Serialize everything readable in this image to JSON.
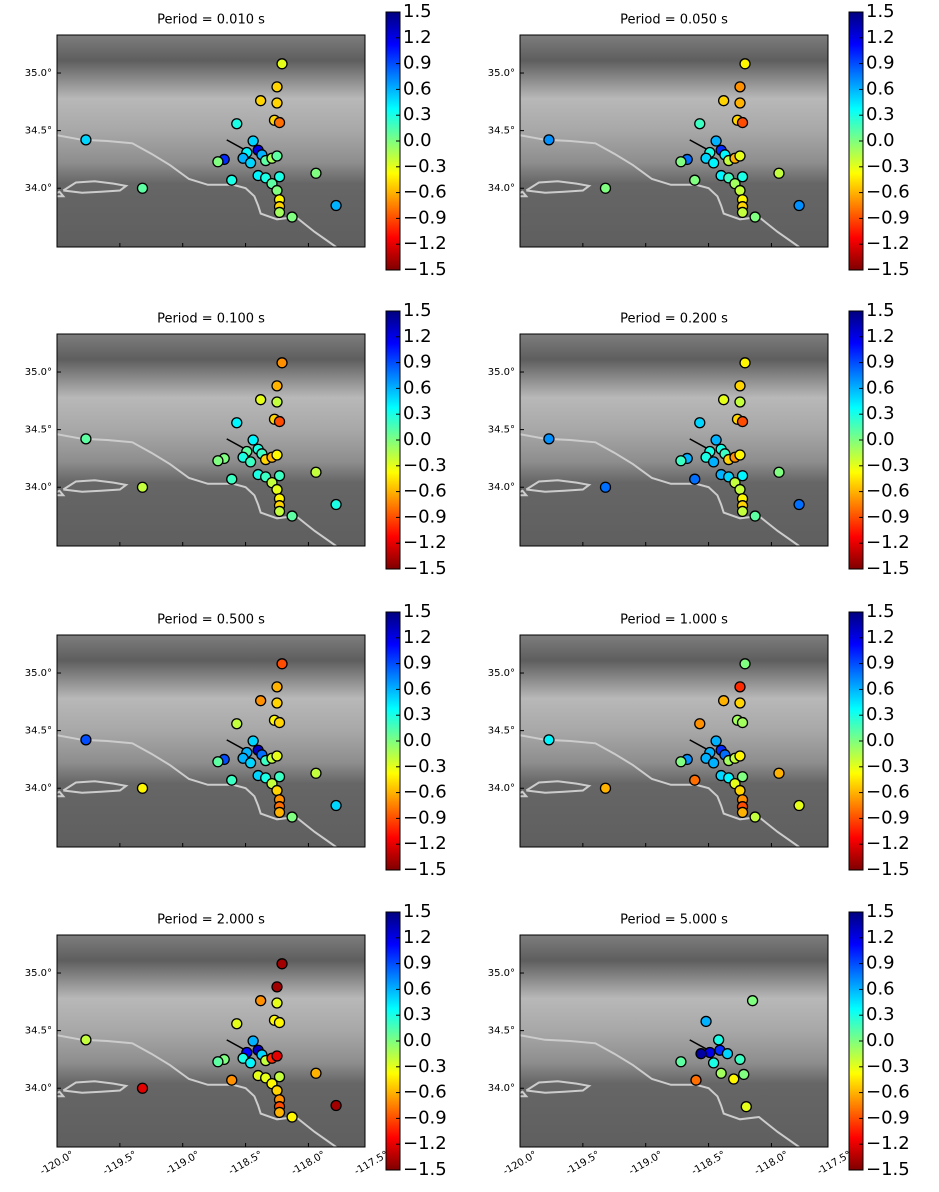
{
  "map": {
    "xlim": [
      -120.0,
      -117.55
    ],
    "ylim": [
      33.49,
      35.33
    ],
    "xticks": [
      {
        "value": -120.0,
        "label": "-120.0°"
      },
      {
        "value": -119.5,
        "label": "-119.5°"
      },
      {
        "value": -119.0,
        "label": "-119.0°"
      },
      {
        "value": -118.5,
        "label": "-118.5°"
      },
      {
        "value": -118.0,
        "label": "-118.0°"
      },
      {
        "value": -117.5,
        "label": "-117.5°"
      }
    ],
    "yticks": [
      {
        "value": 34.0,
        "label": "34.0°"
      },
      {
        "value": 34.5,
        "label": "34.5°"
      },
      {
        "value": 35.0,
        "label": "35.0°"
      }
    ],
    "colorbar": {
      "clim": [
        -1.5,
        1.5
      ],
      "colormap": "jet_r",
      "ticks": [
        1.5,
        1.2,
        0.9,
        0.6,
        0.3,
        {
          "value": 0,
          "label": "0.0"
        },
        {
          "value": -0.3,
          "label": "−0.3"
        },
        {
          "value": -0.6,
          "label": "−0.6"
        },
        {
          "value": -0.9,
          "label": "−0.9"
        },
        {
          "value": -1.2,
          "label": "−1.2"
        },
        {
          "value": -1.5,
          "label": "−1.5"
        }
      ]
    }
  },
  "chart_data": [
    {
      "type": "scatter",
      "title": "Period = 0.010 s",
      "x": [
        -119.77,
        -119.32,
        -118.21,
        -118.25,
        -118.38,
        -118.25,
        -118.27,
        -118.23,
        -118.57,
        -118.44,
        -118.67,
        -118.72,
        -118.61,
        -118.49,
        -118.4,
        -118.37,
        -118.52,
        -118.46,
        -118.34,
        -118.29,
        -118.25,
        -118.4,
        -118.34,
        -118.29,
        -118.23,
        -118.25,
        -118.23,
        -118.23,
        -118.23,
        -118.13,
        -117.94,
        -117.78
      ],
      "y": [
        34.42,
        34.0,
        35.08,
        34.88,
        34.76,
        34.74,
        34.59,
        34.57,
        34.56,
        34.41,
        34.25,
        34.23,
        34.07,
        34.31,
        34.33,
        34.29,
        34.26,
        34.22,
        34.24,
        34.26,
        34.28,
        34.11,
        34.09,
        34.04,
        34.1,
        33.98,
        33.9,
        33.84,
        33.79,
        33.75,
        34.13,
        33.85
      ],
      "values": [
        0.5,
        0.1,
        -0.3,
        -0.5,
        -0.5,
        -0.5,
        -0.5,
        -0.8,
        0.3,
        0.5,
        1.0,
        0.0,
        0.3,
        0.4,
        1.2,
        0.6,
        0.6,
        0.5,
        0.1,
        -0.1,
        0.1,
        0.4,
        0.3,
        0.1,
        0.3,
        0.0,
        -0.4,
        -0.5,
        -0.1,
        0.0,
        0.0,
        0.6
      ]
    },
    {
      "type": "scatter",
      "title": "Period = 0.050 s",
      "x": [
        -119.77,
        -119.32,
        -118.21,
        -118.25,
        -118.38,
        -118.25,
        -118.27,
        -118.23,
        -118.57,
        -118.44,
        -118.67,
        -118.72,
        -118.61,
        -118.49,
        -118.4,
        -118.37,
        -118.52,
        -118.46,
        -118.34,
        -118.29,
        -118.25,
        -118.4,
        -118.34,
        -118.29,
        -118.23,
        -118.25,
        -118.23,
        -118.23,
        -118.23,
        -118.13,
        -117.94,
        -117.78
      ],
      "y": [
        34.42,
        34.0,
        35.08,
        34.88,
        34.76,
        34.74,
        34.59,
        34.57,
        34.56,
        34.41,
        34.25,
        34.23,
        34.07,
        34.31,
        34.33,
        34.29,
        34.26,
        34.22,
        34.24,
        34.26,
        34.28,
        34.11,
        34.09,
        34.04,
        34.1,
        33.98,
        33.9,
        33.84,
        33.79,
        33.75,
        34.13,
        33.85
      ],
      "values": [
        0.7,
        0.0,
        -0.4,
        -0.7,
        -0.5,
        -0.6,
        -0.5,
        -0.9,
        0.2,
        0.6,
        0.8,
        0.0,
        0.0,
        0.3,
        1.0,
        0.4,
        0.5,
        0.4,
        -0.2,
        -0.6,
        -0.3,
        0.4,
        0.2,
        -0.1,
        0.3,
        -0.2,
        -0.4,
        -0.5,
        -0.2,
        0.0,
        -0.2,
        0.7
      ]
    },
    {
      "type": "scatter",
      "title": "Period = 0.100 s",
      "x": [
        -119.77,
        -119.32,
        -118.21,
        -118.25,
        -118.38,
        -118.25,
        -118.27,
        -118.23,
        -118.57,
        -118.44,
        -118.67,
        -118.72,
        -118.61,
        -118.49,
        -118.4,
        -118.37,
        -118.52,
        -118.46,
        -118.34,
        -118.29,
        -118.25,
        -118.4,
        -118.34,
        -118.29,
        -118.23,
        -118.25,
        -118.23,
        -118.23,
        -118.23,
        -118.13,
        -117.94,
        -117.78
      ],
      "y": [
        34.42,
        34.0,
        35.08,
        34.88,
        34.76,
        34.74,
        34.59,
        34.57,
        34.56,
        34.41,
        34.25,
        34.23,
        34.07,
        34.31,
        34.33,
        34.29,
        34.26,
        34.22,
        34.24,
        34.26,
        34.28,
        34.11,
        34.09,
        34.04,
        34.1,
        33.98,
        33.9,
        33.84,
        33.79,
        33.75,
        34.13,
        33.85
      ],
      "values": [
        0.1,
        -0.2,
        -0.7,
        -0.6,
        -0.3,
        -0.2,
        -0.5,
        -0.9,
        0.4,
        0.4,
        0.0,
        0.0,
        0.2,
        0.1,
        0.3,
        0.2,
        0.3,
        0.2,
        -0.5,
        -0.6,
        -0.4,
        0.3,
        0.2,
        -0.2,
        0.2,
        -0.3,
        -0.4,
        -0.5,
        -0.2,
        0.1,
        -0.2,
        0.3
      ]
    },
    {
      "type": "scatter",
      "title": "Period = 0.200 s",
      "x": [
        -119.77,
        -119.32,
        -118.21,
        -118.25,
        -118.38,
        -118.25,
        -118.27,
        -118.23,
        -118.57,
        -118.44,
        -118.67,
        -118.72,
        -118.61,
        -118.49,
        -118.4,
        -118.37,
        -118.52,
        -118.46,
        -118.34,
        -118.29,
        -118.25,
        -118.4,
        -118.34,
        -118.29,
        -118.23,
        -118.25,
        -118.23,
        -118.23,
        -118.23,
        -118.13,
        -117.94,
        -117.78
      ],
      "y": [
        34.42,
        34.0,
        35.08,
        34.88,
        34.76,
        34.74,
        34.59,
        34.57,
        34.56,
        34.41,
        34.25,
        34.23,
        34.07,
        34.31,
        34.33,
        34.29,
        34.26,
        34.22,
        34.24,
        34.26,
        34.28,
        34.11,
        34.09,
        34.04,
        34.1,
        33.98,
        33.9,
        33.84,
        33.79,
        33.75,
        34.13,
        33.85
      ],
      "values": [
        0.7,
        0.8,
        -0.4,
        -0.5,
        -0.3,
        -0.2,
        -0.5,
        -0.9,
        0.5,
        0.6,
        0.6,
        0.2,
        0.8,
        0.3,
        0.3,
        0.2,
        0.3,
        0.6,
        -0.5,
        -0.7,
        -0.4,
        0.6,
        0.5,
        -0.2,
        0.4,
        -0.2,
        -0.4,
        -0.5,
        -0.2,
        0.1,
        0.0,
        0.8
      ]
    },
    {
      "type": "scatter",
      "title": "Period = 0.500 s",
      "x": [
        -119.77,
        -119.32,
        -118.21,
        -118.25,
        -118.38,
        -118.25,
        -118.27,
        -118.23,
        -118.57,
        -118.44,
        -118.67,
        -118.72,
        -118.61,
        -118.49,
        -118.4,
        -118.37,
        -118.52,
        -118.46,
        -118.34,
        -118.29,
        -118.25,
        -118.4,
        -118.34,
        -118.29,
        -118.23,
        -118.25,
        -118.23,
        -118.23,
        -118.23,
        -118.13,
        -117.94,
        -117.78
      ],
      "y": [
        34.42,
        34.0,
        35.08,
        34.88,
        34.76,
        34.74,
        34.59,
        34.57,
        34.56,
        34.41,
        34.25,
        34.23,
        34.07,
        34.31,
        34.33,
        34.29,
        34.26,
        34.22,
        34.24,
        34.26,
        34.28,
        34.11,
        34.09,
        34.04,
        34.1,
        33.98,
        33.9,
        33.84,
        33.79,
        33.75,
        34.13,
        33.85
      ],
      "values": [
        0.9,
        -0.4,
        -0.9,
        -0.6,
        -0.7,
        -0.5,
        -0.4,
        -0.5,
        -0.2,
        0.5,
        0.9,
        0.1,
        0.2,
        0.6,
        1.3,
        0.8,
        0.6,
        0.5,
        0.2,
        -0.2,
        -0.3,
        0.5,
        0.3,
        -0.2,
        0.2,
        -0.5,
        -0.7,
        -0.8,
        -0.6,
        0.0,
        -0.2,
        0.5
      ]
    },
    {
      "type": "scatter",
      "title": "Period = 1.000 s",
      "x": [
        -119.77,
        -119.32,
        -118.21,
        -118.25,
        -118.38,
        -118.25,
        -118.27,
        -118.23,
        -118.57,
        -118.44,
        -118.67,
        -118.72,
        -118.61,
        -118.49,
        -118.4,
        -118.37,
        -118.52,
        -118.46,
        -118.34,
        -118.29,
        -118.25,
        -118.4,
        -118.34,
        -118.29,
        -118.23,
        -118.25,
        -118.23,
        -118.23,
        -118.23,
        -118.13,
        -117.94,
        -117.78
      ],
      "y": [
        34.42,
        34.0,
        35.08,
        34.88,
        34.76,
        34.74,
        34.59,
        34.57,
        34.56,
        34.41,
        34.25,
        34.23,
        34.07,
        34.31,
        34.33,
        34.29,
        34.26,
        34.22,
        34.24,
        34.26,
        34.28,
        34.11,
        34.09,
        34.04,
        34.1,
        33.98,
        33.9,
        33.84,
        33.79,
        33.75,
        34.13,
        33.85
      ],
      "values": [
        0.4,
        -0.6,
        0.0,
        -1.0,
        -0.6,
        -0.5,
        -0.1,
        -0.1,
        -0.7,
        0.6,
        0.7,
        0.0,
        -0.8,
        0.6,
        1.0,
        0.8,
        0.6,
        0.6,
        -0.1,
        -0.2,
        -0.4,
        0.5,
        0.4,
        -0.3,
        0.0,
        -0.5,
        -0.7,
        -0.9,
        -0.6,
        -0.2,
        -0.6,
        -0.3
      ]
    },
    {
      "type": "scatter",
      "title": "Period = 2.000 s",
      "x": [
        -119.77,
        -119.32,
        -118.21,
        -118.25,
        -118.38,
        -118.25,
        -118.27,
        -118.23,
        -118.57,
        -118.44,
        -118.67,
        -118.72,
        -118.61,
        -118.49,
        -118.4,
        -118.37,
        -118.52,
        -118.46,
        -118.34,
        -118.29,
        -118.25,
        -118.4,
        -118.34,
        -118.29,
        -118.23,
        -118.25,
        -118.23,
        -118.23,
        -118.23,
        -118.13,
        -117.94,
        -117.78
      ],
      "y": [
        34.42,
        34.0,
        35.08,
        34.88,
        34.76,
        34.74,
        34.59,
        34.57,
        34.56,
        34.41,
        34.25,
        34.23,
        34.07,
        34.31,
        34.33,
        34.29,
        34.26,
        34.22,
        34.24,
        34.26,
        34.28,
        34.11,
        34.09,
        34.04,
        34.1,
        33.98,
        33.9,
        33.84,
        33.79,
        33.75,
        34.13,
        33.85
      ],
      "values": [
        -0.2,
        -1.2,
        -1.4,
        -1.4,
        -0.7,
        -0.3,
        -0.4,
        -0.4,
        -0.3,
        0.6,
        0.0,
        0.1,
        -0.7,
        1.1,
        1.3,
        0.5,
        0.3,
        0.4,
        -0.2,
        -1.0,
        -1.2,
        -0.3,
        -0.3,
        -0.4,
        -0.2,
        -0.5,
        -0.7,
        -0.9,
        -0.6,
        -0.4,
        -0.6,
        -1.4
      ]
    },
    {
      "type": "scatter",
      "title": "Period = 5.000 s",
      "x": [
        -118.15,
        -118.52,
        -118.42,
        -118.72,
        -118.6,
        -118.49,
        -118.41,
        -118.35,
        -118.46,
        -118.4,
        -118.3,
        -118.25,
        -118.22,
        -118.2,
        -118.56
      ],
      "y": [
        34.76,
        34.58,
        34.42,
        34.23,
        34.07,
        34.31,
        34.33,
        34.3,
        34.22,
        34.13,
        34.08,
        34.25,
        34.12,
        33.84,
        34.3
      ],
      "values": [
        0.0,
        0.6,
        0.3,
        0.1,
        -0.8,
        1.2,
        1.0,
        0.5,
        0.3,
        -0.1,
        -0.4,
        0.2,
        0.0,
        -0.3,
        1.4
      ]
    }
  ]
}
